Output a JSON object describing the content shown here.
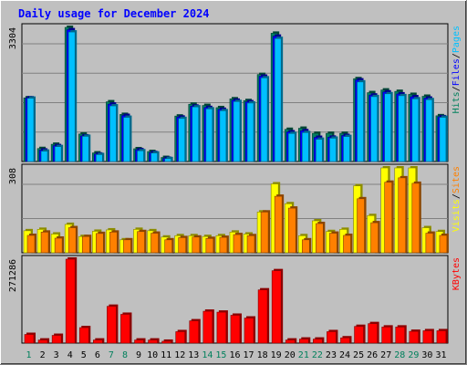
{
  "chart_data": [
    {
      "type": "bar",
      "title": "Daily usage for December 2024",
      "categories": [
        "1",
        "2",
        "3",
        "4",
        "5",
        "6",
        "7",
        "8",
        "9",
        "10",
        "11",
        "12",
        "13",
        "14",
        "15",
        "16",
        "17",
        "18",
        "19",
        "20",
        "21",
        "22",
        "23",
        "24",
        "25",
        "26",
        "27",
        "28",
        "29",
        "30",
        "31"
      ],
      "weekend_days": [
        1,
        7,
        8,
        14,
        15,
        21,
        22,
        28,
        29
      ],
      "ymax_label": "3304",
      "ylim": [
        0,
        3304
      ],
      "legend": [
        {
          "label": "Hits",
          "color": "#00805c"
        },
        {
          "label": "Files",
          "color": "#0000ff"
        },
        {
          "label": "Pages",
          "color": "#00c0ff"
        }
      ],
      "series": [
        {
          "name": "Hits",
          "color": "#008060",
          "values": [
            1568,
            320,
            425,
            3304,
            677,
            212,
            1471,
            1160,
            315,
            246,
            100,
            1120,
            1411,
            1381,
            1327,
            1544,
            1501,
            2143,
            3160,
            792,
            819,
            694,
            694,
            694,
            2040,
            1696,
            1762,
            1727,
            1653,
            1607,
            1127
          ]
        },
        {
          "name": "Files",
          "color": "#0000ff",
          "values": [
            1568,
            282,
            391,
            3246,
            631,
            183,
            1414,
            1135,
            290,
            221,
            80,
            1094,
            1365,
            1330,
            1286,
            1510,
            1471,
            2101,
            3087,
            730,
            758,
            595,
            599,
            641,
            2010,
            1637,
            1714,
            1665,
            1595,
            1561,
            1103
          ]
        },
        {
          "name": "Pages",
          "color": "#00c0ff",
          "values": [
            1559,
            255,
            367,
            3190,
            620,
            170,
            1370,
            1088,
            264,
            209,
            72,
            1060,
            1345,
            1296,
            1251,
            1477,
            1440,
            2060,
            3030,
            690,
            712,
            547,
            574,
            615,
            1960,
            1598,
            1668,
            1621,
            1544,
            1523,
            1088
          ]
        }
      ]
    },
    {
      "type": "bar",
      "ymax_label": "308",
      "ylim": [
        0,
        308
      ],
      "legend": [
        {
          "label": "Visits",
          "color": "#ffff00"
        },
        {
          "label": "Sites",
          "color": "#ff8000"
        }
      ],
      "series": [
        {
          "name": "Visits",
          "color": "#ffff00",
          "values": [
            80,
            85,
            68,
            103,
            59,
            78,
            83,
            47,
            85,
            80,
            57,
            62,
            62,
            59,
            62,
            75,
            68,
            148,
            250,
            178,
            62,
            116,
            77,
            85,
            243,
            135,
            308,
            308,
            308,
            91,
            77
          ]
        },
        {
          "name": "Sites",
          "color": "#ff8000",
          "values": [
            63,
            75,
            53,
            91,
            59,
            70,
            75,
            47,
            77,
            71,
            47,
            55,
            57,
            52,
            56,
            66,
            62,
            148,
            205,
            162,
            47,
            106,
            71,
            63,
            196,
            109,
            256,
            272,
            252,
            71,
            63
          ]
        }
      ]
    },
    {
      "type": "bar",
      "ymax_label": "271286",
      "ylim": [
        0,
        271286
      ],
      "xlabel": "",
      "legend": [
        {
          "label": "KBytes",
          "color": "#ff0000"
        }
      ],
      "series": [
        {
          "name": "KBytes",
          "color": "#ff0000",
          "values": [
            28000,
            10000,
            25000,
            271286,
            50000,
            10000,
            119000,
            93000,
            10000,
            10000,
            6000,
            37000,
            72000,
            103000,
            100000,
            90000,
            81000,
            172000,
            234000,
            10000,
            13000,
            13000,
            37000,
            17000,
            54000,
            63000,
            52000,
            52000,
            38000,
            40000,
            40000
          ]
        }
      ]
    }
  ]
}
